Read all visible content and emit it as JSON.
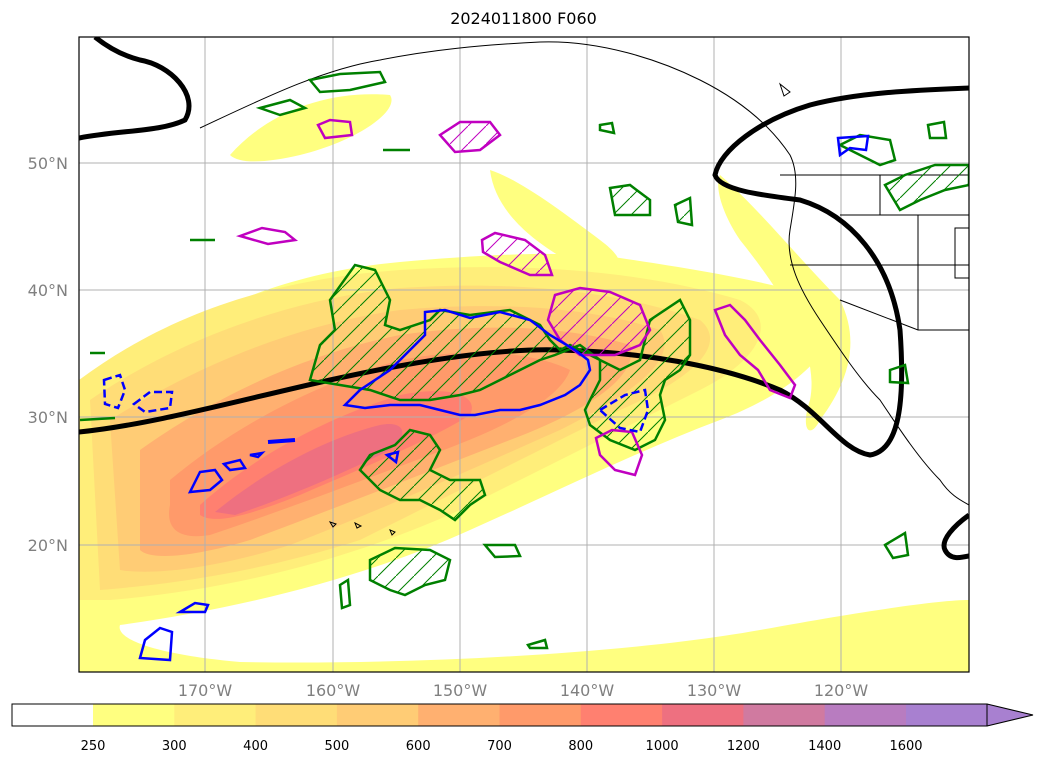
{
  "title": "2024011800 F060",
  "map": {
    "lat_labels": [
      "50°N",
      "40°N",
      "30°N",
      "20°N"
    ],
    "lon_labels": [
      "170°W",
      "160°W",
      "150°W",
      "140°W",
      "130°W",
      "120°W"
    ],
    "lat_values": [
      50,
      40,
      30,
      20
    ],
    "lon_values": [
      -170,
      -160,
      -150,
      -140,
      -130,
      -120
    ],
    "extent": {
      "lon_min": -180,
      "lon_max": -110,
      "lat_min": 10,
      "lat_max": 60
    },
    "grid": true,
    "contour_colors": {
      "green_contour": "#008000",
      "magenta_contour": "#c000c0",
      "blue_contour": "#0000ff",
      "black_line": "#000000"
    }
  },
  "colorbar": {
    "tick_labels": [
      "250",
      "300",
      "400",
      "500",
      "600",
      "700",
      "800",
      "1000",
      "1200",
      "1400",
      "1600"
    ],
    "colors": [
      "#ffff80",
      "#ffee7a",
      "#ffdd77",
      "#ffcc75",
      "#ffb070",
      "#ff9a6a",
      "#ff8070",
      "#ee7080",
      "#d07aa0",
      "#b87cc0",
      "#a880d0"
    ],
    "extend": "max"
  }
}
